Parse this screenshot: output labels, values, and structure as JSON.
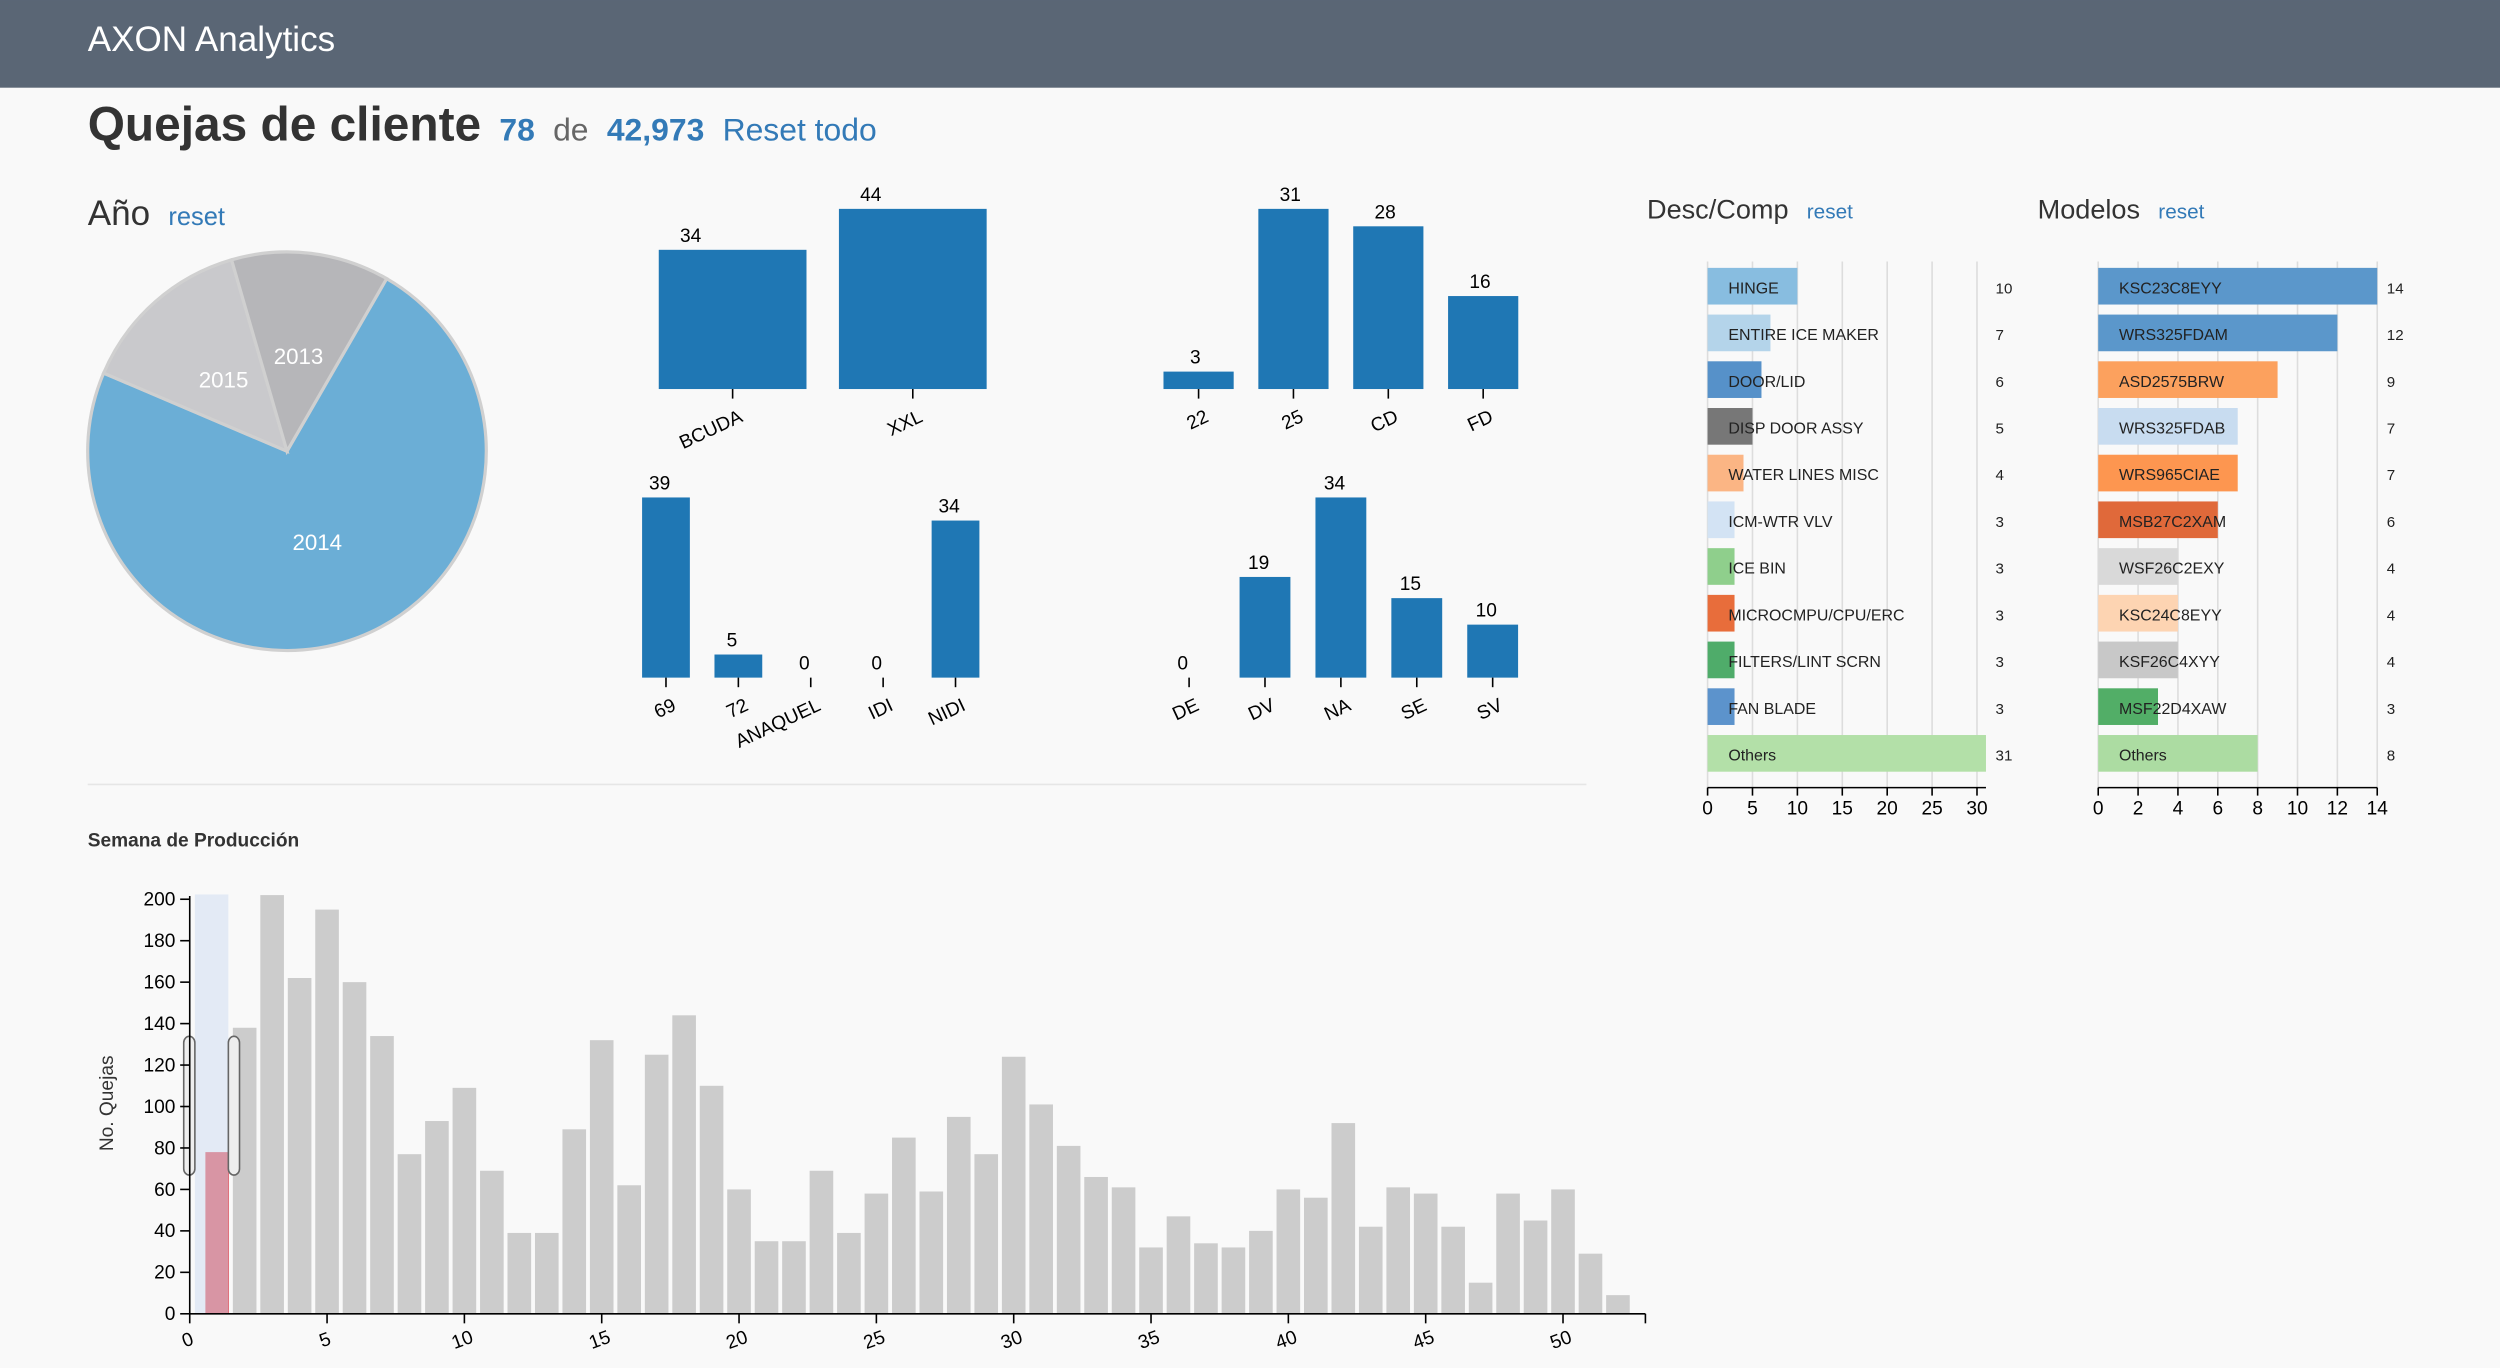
{
  "header": {
    "brand": "AXON Analytics"
  },
  "summary": {
    "title": "Quejas de cliente",
    "selected": "78",
    "of": "de",
    "total": "42,973",
    "reset": "Reset todo"
  },
  "chart_data": [
    {
      "type": "pie",
      "title": "Año",
      "reset": "reset",
      "categories": [
        "2014",
        "2015",
        "2013"
      ],
      "values": [
        57,
        11,
        10
      ],
      "colors": [
        "#6baed6",
        "#c9c9cc",
        "#b6b6b9"
      ]
    },
    {
      "type": "bar",
      "categories": [
        "BCUDA",
        "XXL"
      ],
      "values": [
        34,
        44
      ],
      "color": "#1f77b4"
    },
    {
      "type": "bar",
      "categories": [
        "22",
        "25",
        "CD",
        "FD"
      ],
      "values": [
        3,
        31,
        28,
        16
      ],
      "color": "#1f77b4"
    },
    {
      "type": "bar",
      "categories": [
        "69",
        "72",
        "ANAQUEL",
        "IDI",
        "NIDI"
      ],
      "values": [
        39,
        5,
        0,
        0,
        34
      ],
      "color": "#1f77b4"
    },
    {
      "type": "bar",
      "categories": [
        "DE",
        "DV",
        "NA",
        "SE",
        "SV"
      ],
      "values": [
        0,
        19,
        34,
        15,
        10
      ],
      "color": "#1f77b4"
    },
    {
      "type": "hbar",
      "title": "Desc/Comp",
      "reset": "reset",
      "categories": [
        "HINGE",
        "ENTIRE ICE MAKER",
        "DOOR/LID",
        "DISP DOOR ASSY",
        "WATER LINES MISC",
        "ICM-WTR VLV",
        "ICE BIN",
        "MICROCMPU/CPU/ERC",
        "FILTERS/LINT SCRN",
        "FAN BLADE",
        "Others"
      ],
      "values": [
        10,
        7,
        6,
        5,
        4,
        3,
        3,
        3,
        3,
        3,
        31
      ],
      "colors": [
        "#88bde0",
        "#b4d4ea",
        "#5691c9",
        "#777777",
        "#fbb584",
        "#d3e3f4",
        "#8fcf8c",
        "#e86d3b",
        "#4fac6a",
        "#5c93cc",
        "#b3e0a8"
      ],
      "xlim": [
        0,
        31
      ],
      "xticks": [
        0,
        5,
        10,
        15,
        20,
        25,
        30
      ],
      "grid": true
    },
    {
      "type": "hbar",
      "title": "Modelos",
      "reset": "reset",
      "categories": [
        "KSC23C8EYY",
        "WRS325FDAM",
        "ASD2575BRW",
        "WRS325FDAB",
        "WRS965CIAE",
        "MSB27C2XAM",
        "WSF26C2EXY",
        "KSC24C8EYY",
        "KSF26C4XYY",
        "MSF22D4XAW",
        "Others"
      ],
      "values": [
        14,
        12,
        9,
        7,
        7,
        6,
        4,
        4,
        4,
        3,
        8
      ],
      "colors": [
        "#5b97cb",
        "#5b97cb",
        "#fca15e",
        "#c8dcf0",
        "#fd9650",
        "#e0693a",
        "#d9d9d9",
        "#fdd4b2",
        "#c8c8c8",
        "#52ae67",
        "#acdca2"
      ],
      "xlim": [
        0,
        14
      ],
      "xticks": [
        0,
        2,
        4,
        6,
        8,
        10,
        12,
        14
      ],
      "grid": true
    },
    {
      "type": "bar",
      "title": "Semana de Producción",
      "ylabel": "No. Quejas",
      "x": [
        1,
        2,
        3,
        4,
        5,
        6,
        7,
        8,
        9,
        10,
        11,
        12,
        13,
        14,
        15,
        16,
        17,
        18,
        19,
        20,
        21,
        22,
        23,
        24,
        25,
        26,
        27,
        28,
        29,
        30,
        31,
        32,
        33,
        34,
        35,
        36,
        37,
        38,
        39,
        40,
        41,
        42,
        43,
        44,
        45,
        46,
        47,
        48,
        49,
        50,
        51,
        52
      ],
      "series": [
        {
          "color": "#cccccc",
          "values": [
            null,
            138,
            202,
            162,
            195,
            160,
            134,
            77,
            93,
            109,
            69,
            39,
            39,
            89,
            132,
            62,
            125,
            144,
            110,
            60,
            35,
            35,
            69,
            39,
            58,
            85,
            59,
            95,
            77,
            124,
            101,
            81,
            66,
            61,
            32,
            47,
            34,
            32,
            40,
            60,
            56,
            92,
            42,
            61,
            58,
            42,
            15,
            58,
            45,
            60,
            29,
            9
          ]
        },
        {
          "color": "#e55f66",
          "values": [
            78,
            null,
            null,
            null,
            null,
            null,
            null,
            null,
            null,
            null,
            null,
            null,
            null,
            null,
            null,
            null,
            null,
            null,
            null,
            null,
            null,
            null,
            null,
            null,
            null,
            null,
            null,
            null,
            null,
            null,
            null,
            null,
            null,
            null,
            null,
            null,
            null,
            null,
            null,
            null,
            null,
            null,
            null,
            null,
            null,
            null,
            null,
            null,
            null,
            null,
            null,
            null
          ]
        }
      ],
      "xlim": [
        0,
        53
      ],
      "xticks": [
        0,
        5,
        10,
        15,
        20,
        25,
        30,
        35,
        40,
        45,
        50
      ],
      "ylim": [
        0,
        200
      ],
      "yticks": [
        0,
        20,
        40,
        60,
        80,
        100,
        120,
        140,
        160,
        180,
        200
      ]
    }
  ]
}
